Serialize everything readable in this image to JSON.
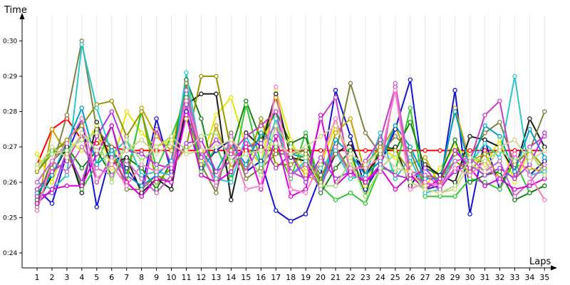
{
  "chart_data": {
    "type": "line",
    "ylabel": "Time",
    "xlabel": "Laps",
    "x": [
      1,
      2,
      3,
      4,
      5,
      6,
      7,
      8,
      9,
      10,
      11,
      12,
      13,
      14,
      15,
      16,
      17,
      18,
      19,
      20,
      21,
      22,
      23,
      24,
      25,
      26,
      27,
      28,
      29,
      30,
      31,
      32,
      33,
      34,
      35
    ],
    "ylim": [
      23.6,
      30.6
    ],
    "yticks": [
      24,
      25,
      26,
      27,
      28,
      29,
      30
    ],
    "ytick_labels": [
      "0:24",
      "0:25",
      "0:26",
      "0:27",
      "0:28",
      "0:29",
      "0:30"
    ],
    "grid": "vertical",
    "series": [
      {
        "color": "#ff0000",
        "values": [
          26.5,
          27.5,
          27.8,
          27.2,
          27.1,
          27.0,
          26.9,
          26.9,
          26.9,
          26.9,
          26.9,
          26.9,
          26.9,
          26.9,
          26.9,
          26.9,
          26.9,
          26.9,
          26.9,
          26.9,
          26.9,
          26.9,
          26.9,
          26.9,
          26.9,
          26.9,
          26.9,
          26.9,
          26.9,
          26.9,
          26.9,
          26.9,
          26.9,
          26.9,
          26.9
        ]
      },
      {
        "color": "#1414d2",
        "values": [
          25.8,
          25.4,
          26.8,
          27.8,
          25.3,
          26.9,
          26.4,
          25.8,
          27.8,
          26.3,
          28.0,
          26.4,
          26.9,
          27.2,
          26.3,
          26.6,
          25.2,
          24.9,
          25.1,
          26.2,
          28.6,
          27.3,
          25.8,
          26.5,
          27.5,
          28.9,
          25.8,
          25.9,
          28.6,
          25.1,
          27.2,
          25.8,
          26.8,
          26.2,
          26.6
        ]
      },
      {
        "color": "#c8a000",
        "values": [
          25.2,
          27.5,
          26.8,
          25.9,
          27.3,
          26.8,
          26.0,
          28.1,
          27.3,
          26.9,
          28.8,
          26.2,
          27.6,
          26.4,
          27.0,
          27.2,
          28.4,
          26.8,
          26.2,
          26.0,
          27.4,
          27.8,
          26.2,
          26.9,
          27.6,
          26.5,
          26.7,
          25.9,
          28.1,
          26.6,
          26.8,
          26.1,
          26.5,
          26.4,
          26.3
        ]
      },
      {
        "color": "#e6e600",
        "values": [
          26.8,
          26.0,
          27.2,
          26.9,
          27.6,
          26.4,
          28.0,
          27.4,
          27.0,
          27.2,
          27.8,
          26.6,
          27.9,
          28.4,
          27.0,
          26.5,
          28.6,
          27.2,
          26.3,
          26.5,
          27.6,
          26.7,
          25.9,
          27.0,
          26.7,
          26.2,
          25.9,
          26.4,
          27.0,
          26.7,
          26.5,
          27.2,
          26.0,
          26.9,
          26.2
        ]
      },
      {
        "color": "#32c832",
        "values": [
          26.3,
          26.9,
          27.1,
          25.8,
          26.5,
          27.6,
          26.2,
          28.0,
          26.4,
          27.3,
          28.4,
          26.3,
          27.0,
          26.1,
          28.2,
          26.5,
          27.0,
          26.1,
          27.4,
          25.9,
          25.5,
          25.7,
          25.4,
          26.4,
          26.3,
          28.1,
          25.6,
          25.6,
          25.6,
          26.1,
          26.0,
          25.8,
          26.6,
          25.7,
          25.9
        ]
      },
      {
        "color": "#148214",
        "values": [
          25.5,
          26.6,
          27.0,
          26.4,
          26.9,
          26.2,
          26.7,
          26.4,
          25.8,
          26.6,
          28.9,
          27.8,
          26.0,
          26.9,
          28.3,
          27.2,
          28.0,
          27.1,
          27.3,
          25.7,
          26.4,
          26.9,
          25.6,
          27.1,
          26.9,
          27.7,
          26.4,
          26.2,
          27.2,
          26.0,
          26.2,
          26.3,
          25.5,
          25.7,
          25.9
        ]
      },
      {
        "color": "#1e1e1e",
        "values": [
          25.4,
          26.2,
          27.0,
          25.7,
          27.7,
          26.5,
          26.7,
          25.7,
          26.1,
          25.8,
          28.2,
          28.5,
          28.5,
          25.5,
          27.4,
          27.0,
          28.5,
          26.7,
          26.6,
          25.9,
          26.8,
          27.1,
          26.2,
          26.8,
          27.0,
          25.9,
          26.5,
          26.2,
          26.0,
          27.3,
          27.2,
          27.0,
          26.3,
          27.8,
          27.0
        ]
      },
      {
        "color": "#808040",
        "values": [
          25.3,
          26.4,
          27.9,
          30.0,
          27.5,
          27.0,
          25.8,
          25.8,
          26.2,
          26.0,
          28.8,
          26.5,
          25.7,
          27.4,
          26.1,
          26.4,
          26.8,
          26.8,
          26.9,
          26.2,
          26.8,
          28.8,
          27.4,
          26.8,
          27.3,
          26.9,
          25.8,
          26.1,
          26.8,
          26.7,
          27.4,
          27.7,
          26.5,
          26.9,
          28.0
        ]
      },
      {
        "color": "#969600",
        "values": [
          26.3,
          26.8,
          27.2,
          27.6,
          28.2,
          28.3,
          27.3,
          28.0,
          26.0,
          26.4,
          27.0,
          29.0,
          29.0,
          26.9,
          26.3,
          27.8,
          26.5,
          26.5,
          26.8,
          26.0,
          27.0,
          26.3,
          26.5,
          27.0,
          26.9,
          26.3,
          26.2,
          26.1,
          26.6,
          26.3,
          26.8,
          26.9,
          26.6,
          26.9,
          26.4
        ]
      },
      {
        "color": "#28c8c8",
        "values": [
          26.0,
          25.8,
          26.2,
          29.9,
          28.1,
          26.8,
          27.2,
          26.2,
          26.3,
          26.2,
          29.1,
          26.7,
          26.1,
          26.0,
          27.3,
          26.5,
          27.8,
          26.2,
          26.6,
          26.4,
          26.9,
          26.1,
          26.2,
          27.4,
          26.1,
          26.7,
          25.7,
          25.8,
          26.9,
          26.5,
          27.1,
          26.7,
          29.0,
          26.2,
          26.3
        ]
      },
      {
        "color": "#00a0c8",
        "values": [
          25.7,
          26.2,
          27.1,
          28.1,
          26.5,
          26.9,
          26.2,
          25.9,
          26.2,
          26.6,
          28.5,
          26.9,
          26.3,
          27.1,
          26.5,
          27.4,
          27.1,
          26.8,
          26.7,
          25.9,
          27.2,
          26.8,
          26.2,
          26.6,
          27.6,
          27.0,
          26.1,
          26.1,
          28.0,
          26.4,
          27.6,
          27.3,
          26.3,
          27.5,
          26.7
        ]
      },
      {
        "color": "#c83cc8",
        "values": [
          25.8,
          26.3,
          26.6,
          27.4,
          26.0,
          26.7,
          26.0,
          25.6,
          27.5,
          26.5,
          28.2,
          26.7,
          27.2,
          26.8,
          27.3,
          27.6,
          28.0,
          26.3,
          26.1,
          27.8,
          28.4,
          26.2,
          26.6,
          27.2,
          28.7,
          26.2,
          26.0,
          25.8,
          26.4,
          26.6,
          27.9,
          28.3,
          26.1,
          27.0,
          27.3
        ]
      },
      {
        "color": "#c864c8",
        "values": [
          26.0,
          26.6,
          26.3,
          27.0,
          26.4,
          26.2,
          26.6,
          26.1,
          25.7,
          26.2,
          28.6,
          26.9,
          25.9,
          27.3,
          26.3,
          27.1,
          27.6,
          26.2,
          26.5,
          25.8,
          27.0,
          26.2,
          26.1,
          26.3,
          28.8,
          26.3,
          26.2,
          25.9,
          26.6,
          26.7,
          26.3,
          26.6,
          25.6,
          26.0,
          26.5
        ]
      },
      {
        "color": "#b432e6",
        "values": [
          25.6,
          25.7,
          26.9,
          26.0,
          27.3,
          28.0,
          26.9,
          26.8,
          26.5,
          26.4,
          27.1,
          27.2,
          26.3,
          26.6,
          27.0,
          27.1,
          26.4,
          26.8,
          26.0,
          26.7,
          26.1,
          26.3,
          26.0,
          26.5,
          26.2,
          26.1,
          26.4,
          25.9,
          26.3,
          26.5,
          26.2,
          26.4,
          26.1,
          26.5,
          27.4
        ]
      },
      {
        "color": "#dc00dc",
        "values": [
          25.4,
          25.8,
          25.9,
          25.9,
          26.8,
          27.6,
          26.0,
          25.6,
          26.1,
          26.0,
          27.9,
          26.2,
          26.0,
          26.3,
          27.1,
          25.8,
          27.3,
          25.6,
          25.8,
          27.9,
          25.9,
          26.3,
          26.0,
          26.4,
          25.8,
          26.2,
          25.8,
          26.1,
          26.9,
          26.4,
          25.9,
          26.1,
          25.8,
          25.9,
          26.1
        ]
      },
      {
        "color": "#ff78c8",
        "values": [
          25.2,
          26.6,
          27.1,
          27.8,
          26.1,
          26.5,
          25.9,
          26.5,
          26.3,
          26.5,
          28.3,
          26.9,
          26.0,
          27.1,
          25.8,
          25.9,
          28.7,
          25.8,
          25.7,
          26.6,
          27.8,
          26.4,
          26.4,
          26.7,
          28.6,
          25.8,
          26.0,
          25.9,
          26.4,
          26.2,
          26.6,
          26.0,
          26.8,
          26.2,
          25.5
        ]
      },
      {
        "color": "#aadc78",
        "values": [
          26.5,
          26.8,
          26.9,
          27.2,
          27.4,
          26.0,
          27.2,
          26.6,
          27.0,
          27.3,
          26.9,
          27.3,
          27.4,
          26.6,
          26.8,
          26.2,
          27.6,
          27.0,
          26.7,
          25.9,
          25.9,
          26.6,
          25.6,
          26.4,
          26.8,
          26.0,
          25.8,
          25.7,
          25.9,
          26.7,
          26.6,
          26.9,
          26.6,
          26.9,
          26.2
        ]
      },
      {
        "color": "#d2d28c",
        "values": [
          26.4,
          27.0,
          26.7,
          27.4,
          26.9,
          26.6,
          26.9,
          27.2,
          26.8,
          27.1,
          26.8,
          26.9,
          27.0,
          27.2,
          26.8,
          26.9,
          27.1,
          26.8,
          27.0,
          27.3,
          27.6,
          26.8,
          26.5,
          26.9,
          26.4,
          26.3,
          25.8,
          25.7,
          25.8,
          26.5,
          26.3,
          27.0,
          27.2,
          26.6,
          26.9
        ]
      }
    ]
  }
}
